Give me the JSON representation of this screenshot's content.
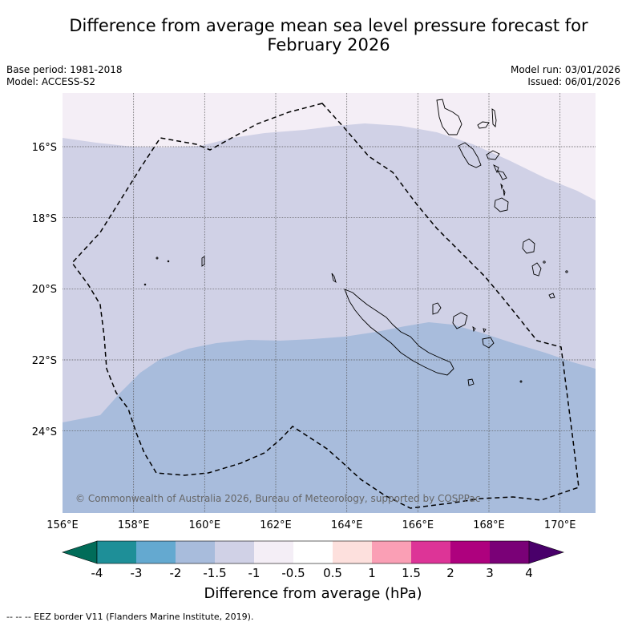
{
  "header": {
    "title_line1": "Difference from average mean sea level pressure forecast for",
    "title_line2": "February 2026"
  },
  "meta": {
    "base_period": "Base period: 1981-2018",
    "model": "Model: ACCESS-S2",
    "model_run": "Model run: 03/01/2026",
    "issued": "Issued: 06/01/2026"
  },
  "map": {
    "x_ticks": [
      "156°E",
      "158°E",
      "160°E",
      "162°E",
      "164°E",
      "166°E",
      "168°E",
      "170°E"
    ],
    "y_ticks": [
      "16°S",
      "18°S",
      "20°S",
      "22°S",
      "24°S"
    ],
    "copyright": "© Commonwealth of Australia 2026, Bureau of Meteorology, supported by COSPPac"
  },
  "colorbar": {
    "title": "Difference from average (hPa)",
    "labels": [
      "-4",
      "-3",
      "-2",
      "-1.5",
      "-1",
      "-0.5",
      "0.5",
      "1",
      "1.5",
      "2",
      "3",
      "4"
    ],
    "colors": [
      "#1e8f98",
      "#64a9d0",
      "#a8bcdc",
      "#d0d1e6",
      "#f4eef6",
      "#ffffff",
      "#fde0dd",
      "#fa9fb5",
      "#dd3497",
      "#ae017e",
      "#7a0177"
    ],
    "under_color": "#016c59",
    "over_color": "#49006a"
  },
  "footer": {
    "eez_legend": "--  --  -- EEZ border V11 (Flanders Marine Institute, 2019)."
  }
}
